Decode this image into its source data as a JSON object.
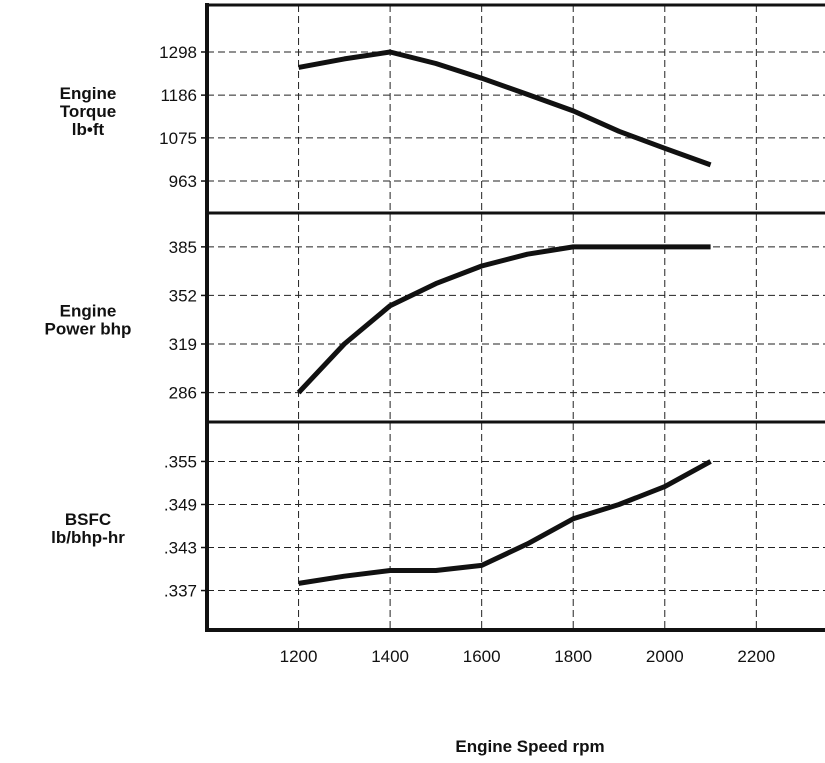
{
  "chart_data": [
    {
      "type": "line",
      "title": "",
      "xlabel": "Engine Speed rpm",
      "ylabel_lines": [
        "Engine",
        "Torque",
        "lb•ft"
      ],
      "x_ticks": [
        1200,
        1400,
        1600,
        1800,
        2000,
        2200
      ],
      "xlim": [
        1000,
        2350
      ],
      "y_ticks": [
        "1298",
        "1186",
        "1075",
        "963"
      ],
      "ylim": [
        880,
        1420
      ],
      "series": [
        {
          "x": [
            1200,
            1300,
            1400,
            1500,
            1600,
            1700,
            1800,
            1900,
            2000,
            2100
          ],
          "y": [
            1258,
            1280,
            1298,
            1268,
            1230,
            1188,
            1145,
            1092,
            1048,
            1005
          ]
        }
      ],
      "grid": true
    },
    {
      "type": "line",
      "title": "",
      "xlabel": "Engine Speed rpm",
      "ylabel_lines": [
        "Engine",
        "Power bhp"
      ],
      "x_ticks": [
        1200,
        1400,
        1600,
        1800,
        2000,
        2200
      ],
      "xlim": [
        1000,
        2350
      ],
      "y_ticks": [
        "385",
        "352",
        "319",
        "286"
      ],
      "ylim": [
        266,
        408
      ],
      "series": [
        {
          "x": [
            1200,
            1300,
            1400,
            1500,
            1600,
            1700,
            1800,
            1900,
            2000,
            2100
          ],
          "y": [
            286,
            319,
            345,
            360,
            372,
            380,
            385,
            385,
            385,
            385
          ]
        }
      ],
      "grid": true
    },
    {
      "type": "line",
      "title": "",
      "xlabel": "Engine Speed rpm",
      "ylabel_lines": [
        "BSFC",
        "lb/bhp-hr"
      ],
      "x_ticks": [
        1200,
        1400,
        1600,
        1800,
        2000,
        2200
      ],
      "xlim": [
        1000,
        2350
      ],
      "y_ticks": [
        ".355",
        ".349",
        ".343",
        ".337"
      ],
      "ylim": [
        0.3315,
        0.3605
      ],
      "series": [
        {
          "x": [
            1200,
            1300,
            1400,
            1500,
            1600,
            1700,
            1800,
            1900,
            2000,
            2100
          ],
          "y": [
            0.338,
            0.339,
            0.3398,
            0.3398,
            0.3405,
            0.3435,
            0.347,
            0.349,
            0.3515,
            0.355
          ]
        }
      ],
      "grid": true
    }
  ]
}
